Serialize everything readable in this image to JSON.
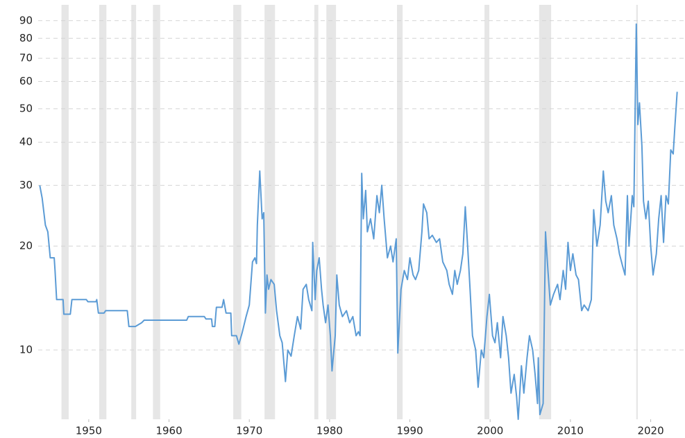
{
  "chart_data": {
    "type": "line",
    "log_scale": true,
    "grid": true,
    "xlim": [
      1943.7,
      2024.1
    ],
    "xticks": [
      1950,
      1960,
      1970,
      1980,
      1990,
      2000,
      2010,
      2020
    ],
    "ylim": [
      6.3,
      100
    ],
    "yticks": [
      10,
      20,
      30,
      40,
      50,
      60,
      70,
      80,
      90
    ],
    "shade_color": "#e6e6e6",
    "shaded_periods": [
      [
        1946.6,
        1947.5
      ],
      [
        1951.3,
        1952.2
      ],
      [
        1955.3,
        1955.9
      ],
      [
        1958.0,
        1958.9
      ],
      [
        1968.0,
        1969.0
      ],
      [
        1971.9,
        1973.2
      ],
      [
        1978.1,
        1978.6
      ],
      [
        1979.6,
        1980.8
      ],
      [
        1988.4,
        1989.1
      ],
      [
        1999.3,
        1999.9
      ],
      [
        2006.1,
        2007.6
      ],
      [
        2018.2,
        2018.4
      ]
    ],
    "x": [
      1943.9,
      1944.2,
      1944.6,
      1944.9,
      1945.2,
      1945.7,
      1945.8,
      1946.0,
      1946.8,
      1946.9,
      1947.7,
      1947.9,
      1949.7,
      1949.9,
      1950.9,
      1951.0,
      1951.2,
      1951.9,
      1952.1,
      1954.8,
      1955.0,
      1955.8,
      1956.6,
      1956.9,
      1962.2,
      1962.4,
      1964.4,
      1964.6,
      1965.3,
      1965.4,
      1965.7,
      1965.9,
      1966.6,
      1966.8,
      1967.1,
      1967.7,
      1967.8,
      1968.4,
      1968.7,
      1969.1,
      1969.6,
      1970.0,
      1970.4,
      1970.7,
      1970.9,
      1971.0,
      1971.3,
      1971.6,
      1971.8,
      1972.0,
      1972.2,
      1972.4,
      1972.7,
      1973.1,
      1973.4,
      1973.8,
      1974.1,
      1974.5,
      1974.8,
      1975.2,
      1975.6,
      1976.0,
      1976.4,
      1976.7,
      1977.1,
      1977.4,
      1977.8,
      1977.9,
      1978.2,
      1978.4,
      1978.7,
      1979.0,
      1979.2,
      1979.5,
      1979.8,
      1980.1,
      1980.3,
      1980.7,
      1980.9,
      1981.2,
      1981.6,
      1982.1,
      1982.5,
      1982.9,
      1983.3,
      1983.6,
      1983.8,
      1984.0,
      1984.2,
      1984.5,
      1984.7,
      1985.1,
      1985.5,
      1985.9,
      1986.2,
      1986.5,
      1986.8,
      1987.2,
      1987.6,
      1987.9,
      1988.3,
      1988.5,
      1988.9,
      1989.3,
      1989.7,
      1990.0,
      1990.4,
      1990.7,
      1991.1,
      1991.5,
      1991.7,
      1992.1,
      1992.4,
      1992.8,
      1993.3,
      1993.7,
      1994.1,
      1994.6,
      1994.9,
      1995.3,
      1995.6,
      1995.9,
      1996.3,
      1996.6,
      1996.9,
      1997.2,
      1997.5,
      1997.8,
      1998.2,
      1998.5,
      1998.9,
      1999.2,
      1999.6,
      1999.9,
      2000.3,
      2000.6,
      2000.9,
      2001.3,
      2001.6,
      2002.0,
      2002.3,
      2002.6,
      2003.0,
      2003.3,
      2003.5,
      2003.9,
      2004.2,
      2004.6,
      2004.9,
      2005.3,
      2005.6,
      2005.9,
      2006.0,
      2006.2,
      2006.6,
      2006.9,
      2007.2,
      2007.5,
      2007.9,
      2008.4,
      2008.7,
      2009.1,
      2009.4,
      2009.7,
      2010.0,
      2010.3,
      2010.7,
      2011.0,
      2011.4,
      2011.7,
      2012.2,
      2012.6,
      2012.9,
      2013.3,
      2013.7,
      2014.1,
      2014.4,
      2014.7,
      2015.1,
      2015.4,
      2015.8,
      2016.1,
      2016.5,
      2016.8,
      2017.1,
      2017.3,
      2017.7,
      2017.9,
      2018.0,
      2018.2,
      2018.4,
      2018.6,
      2018.9,
      2019.1,
      2019.4,
      2019.7,
      2020.0,
      2020.3,
      2020.7,
      2021.0,
      2021.3,
      2021.6,
      2021.9,
      2022.2,
      2022.5,
      2022.8,
      2023.0,
      2023.3
    ],
    "series": [
      {
        "color": "#5b9bd5",
        "values": [
          30,
          27.5,
          23,
          22,
          18.5,
          18.5,
          17,
          14,
          14,
          12.7,
          12.7,
          14,
          14,
          13.8,
          13.8,
          14,
          12.8,
          12.8,
          13,
          13,
          11.7,
          11.7,
          12,
          12.2,
          12.2,
          12.5,
          12.5,
          12.3,
          12.3,
          11.7,
          11.7,
          13.3,
          13.3,
          14,
          12.8,
          12.8,
          11,
          11,
          10.4,
          11.2,
          12.5,
          13.5,
          18,
          18.5,
          17.8,
          23,
          33,
          24,
          25,
          12.8,
          16.5,
          15,
          16,
          15.5,
          13,
          11,
          10.5,
          8.1,
          10,
          9.6,
          11,
          12.5,
          11.5,
          15,
          15.5,
          14,
          13,
          20.5,
          14,
          17,
          18.5,
          15,
          13.5,
          12,
          13.5,
          11,
          8.7,
          11,
          16.5,
          13.5,
          12.5,
          13,
          12,
          12.5,
          11,
          11.3,
          11,
          32.5,
          24,
          29,
          22,
          24,
          21,
          28,
          25,
          30,
          24,
          18.5,
          20,
          18,
          21,
          9.8,
          15,
          17,
          16,
          18.5,
          16.5,
          16,
          17,
          22,
          26.5,
          25,
          21,
          21.5,
          20.5,
          21,
          18,
          17,
          15.5,
          14.5,
          17,
          15.5,
          17,
          19,
          26,
          20,
          15,
          11,
          10,
          7.8,
          10,
          9.5,
          12.5,
          14.5,
          11,
          10.5,
          12,
          9.5,
          12.5,
          11,
          9.5,
          7.5,
          8.5,
          7.3,
          6.3,
          9,
          7.5,
          9.5,
          11,
          10,
          8.5,
          7,
          9.5,
          6.5,
          7,
          22,
          17,
          13.5,
          14.5,
          15.5,
          14,
          17,
          15,
          20.5,
          17,
          19,
          16.5,
          16,
          13,
          13.5,
          13,
          14,
          25.5,
          20,
          23,
          33,
          27,
          25,
          28,
          23,
          21,
          19,
          17.5,
          16.5,
          28,
          20,
          28,
          26,
          38,
          88,
          45,
          52,
          39,
          27,
          24,
          27,
          20,
          16.5,
          19,
          24,
          28,
          20.5,
          28,
          26.5,
          38,
          37,
          44,
          56
        ]
      }
    ]
  }
}
